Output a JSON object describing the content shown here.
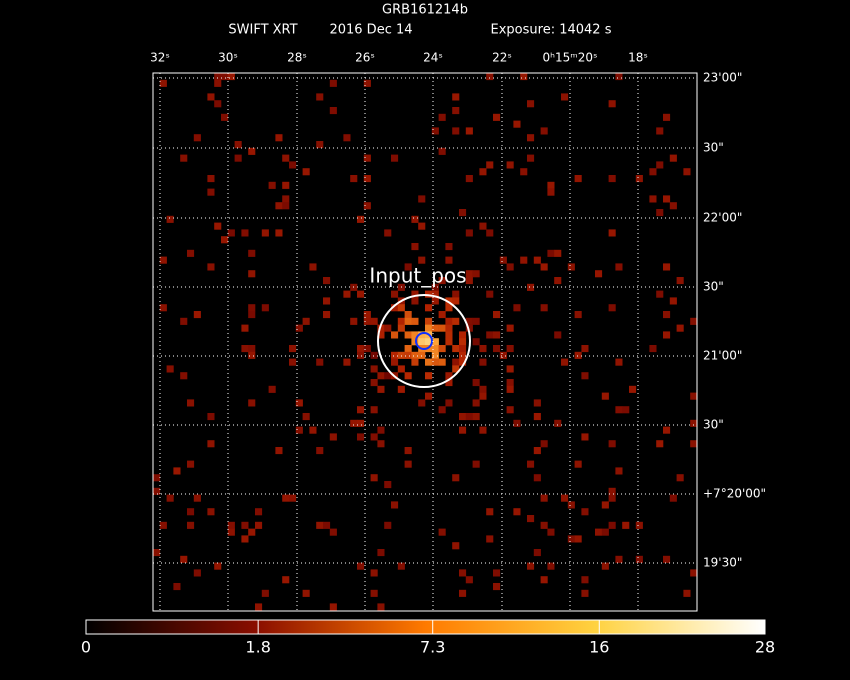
{
  "title": "GRB161214b",
  "subtitle": [
    "SWIFT XRT",
    "2016 Dec 14",
    "Exposure: 14042 s"
  ],
  "ra_labels": [
    "32ˢ",
    "30ˢ",
    "28ˢ",
    "26ˢ",
    "24ˢ",
    "22ˢ",
    "0ʰ15ᵐ20ˢ",
    "18ˢ"
  ],
  "dec_labels": [
    "23'00\"",
    "30\"",
    "22'00\"",
    "30\"",
    "21'00\"",
    "30\"",
    "+7°20'00\"",
    "19'30\""
  ],
  "annotation": "Input_pos",
  "colorbar": {
    "scale": "sqrt",
    "lim": [
      0,
      28
    ],
    "ticks": [
      0,
      1.8,
      7.3,
      16,
      28
    ]
  }
}
